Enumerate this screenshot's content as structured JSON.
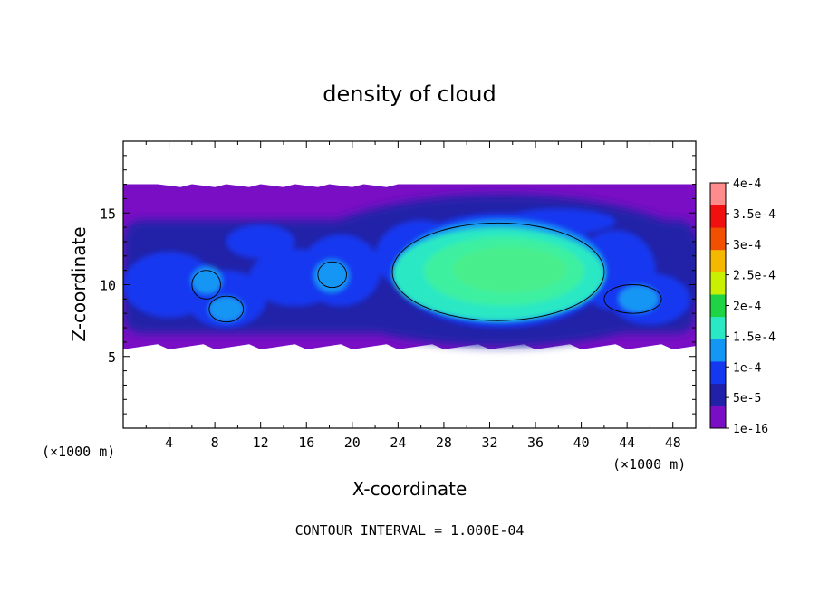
{
  "chart_data": {
    "type": "heatmap",
    "title": "density of cloud",
    "xlabel": "X-coordinate",
    "ylabel": "Z-coordinate",
    "x_unit": "(×1000 m)",
    "z_unit": "(×1000 m)",
    "xlim": [
      0,
      50
    ],
    "ylim": [
      0,
      20
    ],
    "x_ticks": [
      "4",
      "8",
      "12",
      "16",
      "20",
      "24",
      "28",
      "32",
      "36",
      "40",
      "44",
      "48"
    ],
    "y_ticks": [
      "5",
      "10",
      "15"
    ],
    "footer": "CONTOUR INTERVAL = 1.000E-04",
    "contour_interval": 0.0001,
    "colorbar": {
      "labels": [
        "1e-16",
        "5e-5",
        "1e-4",
        "1.5e-4",
        "2e-4",
        "2.5e-4",
        "3e-4",
        "3.5e-4",
        "4e-4"
      ],
      "levels": [
        1e-16,
        5e-05,
        0.0001,
        0.00015,
        0.0002,
        0.00025,
        0.0003,
        0.00035,
        0.0004
      ],
      "colors": [
        "#7a0ec4",
        "#2020a8",
        "#1438f0",
        "#1496f4",
        "#2ae8c4",
        "#1ed444",
        "#c8f000",
        "#f4b800",
        "#f05000",
        "#f01010",
        "#ff8c8c"
      ]
    },
    "cloud_layer_z": [
      5.5,
      17
    ],
    "core_region": {
      "x": [
        23.5,
        42
      ],
      "z": [
        7.5,
        14
      ],
      "max_value": 0.00018
    },
    "contour_1e-4_regions": [
      {
        "x": [
          23.5,
          42
        ],
        "z": [
          7.5,
          14.3
        ]
      },
      {
        "x": [
          17,
          19.5
        ],
        "z": [
          9.8,
          11.6
        ]
      },
      {
        "x": [
          6,
          8.5
        ],
        "z": [
          9,
          11
        ]
      },
      {
        "x": [
          7.5,
          10.5
        ],
        "z": [
          7.4,
          9.2
        ]
      },
      {
        "x": [
          42,
          47
        ],
        "z": [
          8,
          10
        ]
      }
    ]
  }
}
